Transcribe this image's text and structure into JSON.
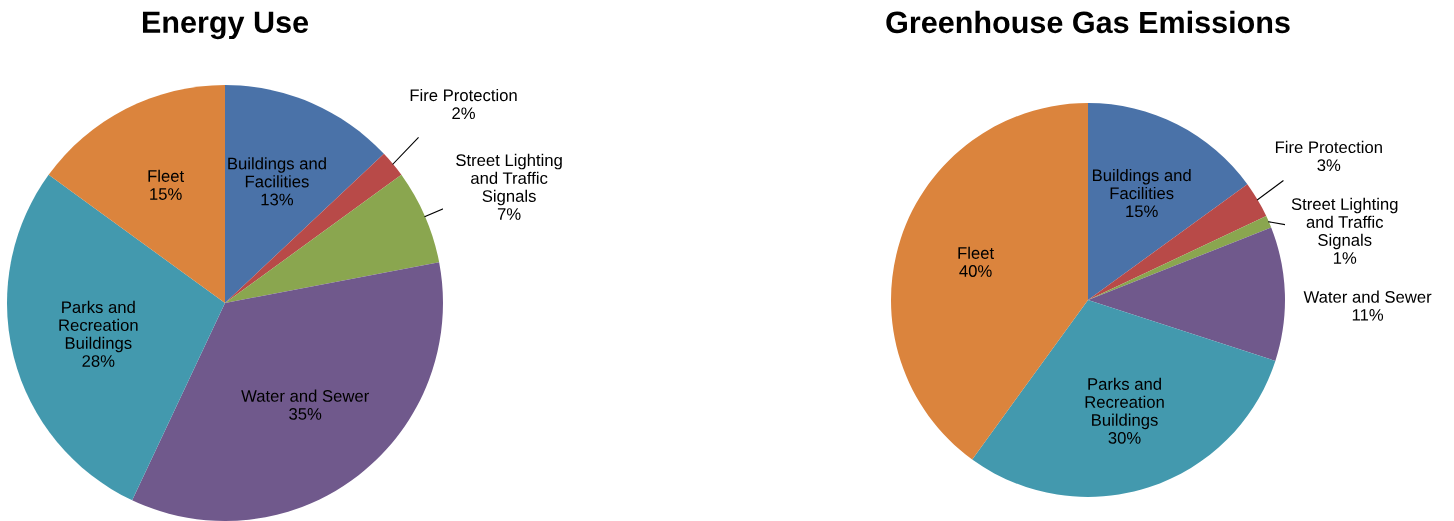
{
  "chart_data": [
    {
      "type": "pie",
      "title": "Energy Use",
      "categories": [
        "Buildings and Facilities",
        "Fire Protection",
        "Street Lighting and Traffic Signals",
        "Water and Sewer",
        "Parks and Recreation Buildings",
        "Fleet"
      ],
      "values": [
        13,
        2,
        7,
        35,
        28,
        15
      ],
      "value_labels": [
        "13%",
        "2%",
        "7%",
        "35%",
        "28%",
        "15%"
      ],
      "colors": [
        "#4a72a8",
        "#b84a48",
        "#8aa64f",
        "#70598c",
        "#4399ae",
        "#db843d"
      ]
    },
    {
      "type": "pie",
      "title": "Greenhouse Gas Emissions",
      "categories": [
        "Buildings and Facilities",
        "Fire Protection",
        "Street Lighting and Traffic Signals",
        "Water and Sewer",
        "Parks and Recreation Buildings",
        "Fleet"
      ],
      "values": [
        15,
        3,
        1,
        11,
        30,
        40
      ],
      "value_labels": [
        "15%",
        "3%",
        "1%",
        "11%",
        "30%",
        "40%"
      ],
      "colors": [
        "#4a72a8",
        "#b84a48",
        "#8aa64f",
        "#70598c",
        "#4399ae",
        "#db843d"
      ]
    }
  ]
}
